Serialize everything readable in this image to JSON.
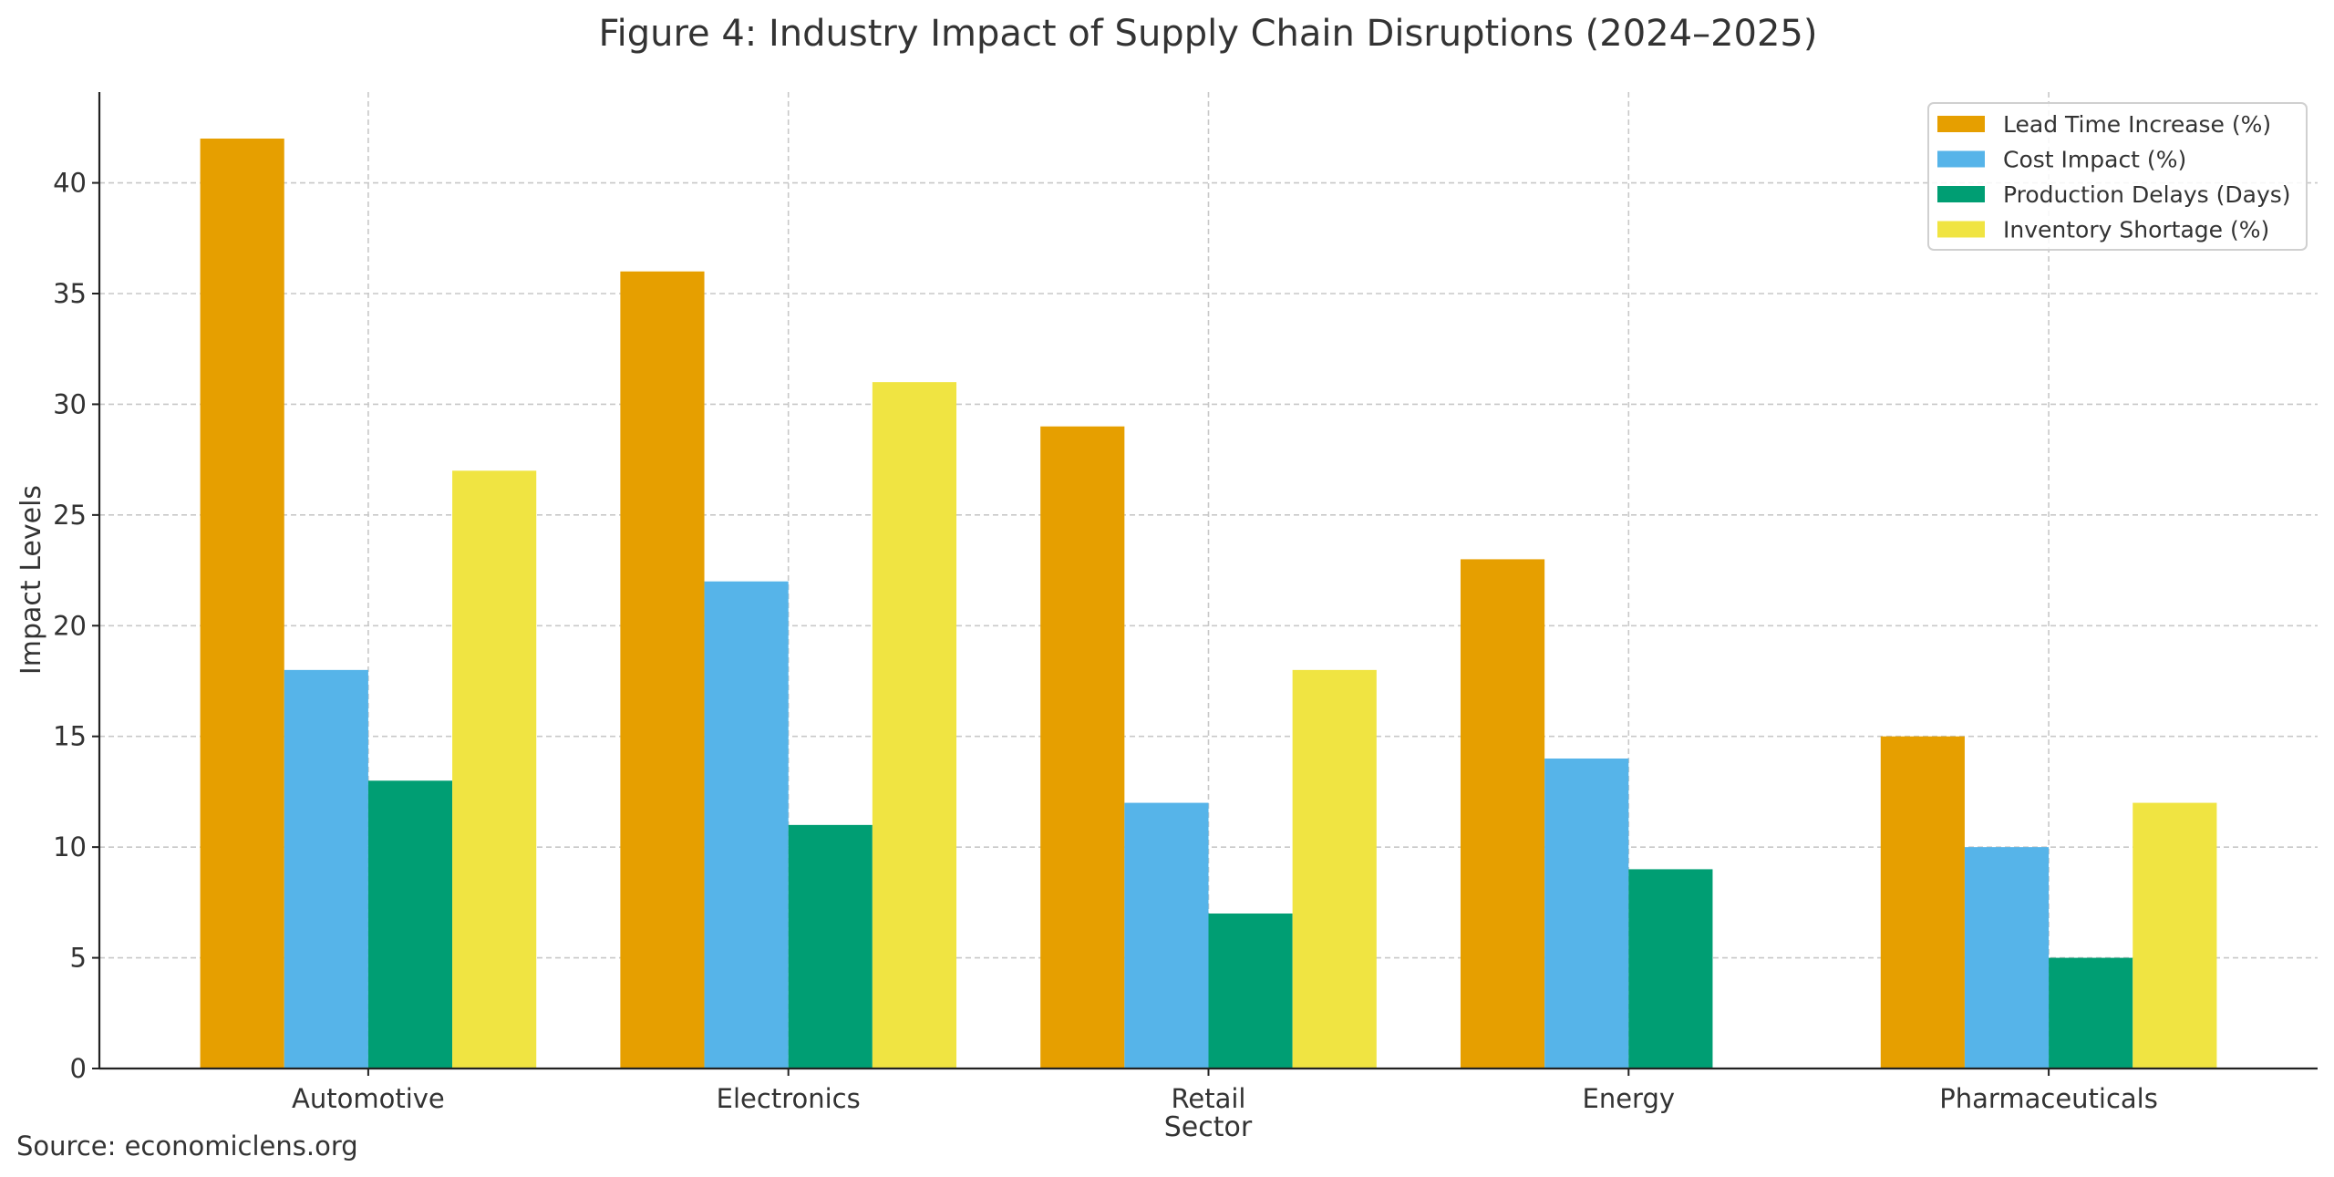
{
  "chart_data": {
    "type": "bar",
    "title": "Figure 4: Industry Impact of Supply Chain Disruptions (2024–2025)",
    "xlabel": "Sector",
    "ylabel": "Impact Levels",
    "categories": [
      "Automotive",
      "Electronics",
      "Retail",
      "Energy",
      "Pharmaceuticals"
    ],
    "series": [
      {
        "name": "Lead Time Increase (%)",
        "color": "#E69F00",
        "values": [
          42,
          36,
          29,
          23,
          15
        ]
      },
      {
        "name": "Cost Impact (%)",
        "color": "#56B4E9",
        "values": [
          18,
          22,
          12,
          14,
          10
        ]
      },
      {
        "name": "Production Delays (Days)",
        "color": "#009E73",
        "values": [
          13,
          11,
          7,
          9,
          5
        ]
      },
      {
        "name": "Inventory Shortage (%)",
        "color": "#F0E442",
        "values": [
          27,
          31,
          18,
          0,
          12
        ]
      }
    ],
    "ylim": [
      0,
      44.1
    ],
    "yticks": [
      0,
      5,
      10,
      15,
      20,
      25,
      30,
      35,
      40
    ],
    "grid": true,
    "legend_position": "top-right"
  },
  "source": "Source: economiclens.org"
}
